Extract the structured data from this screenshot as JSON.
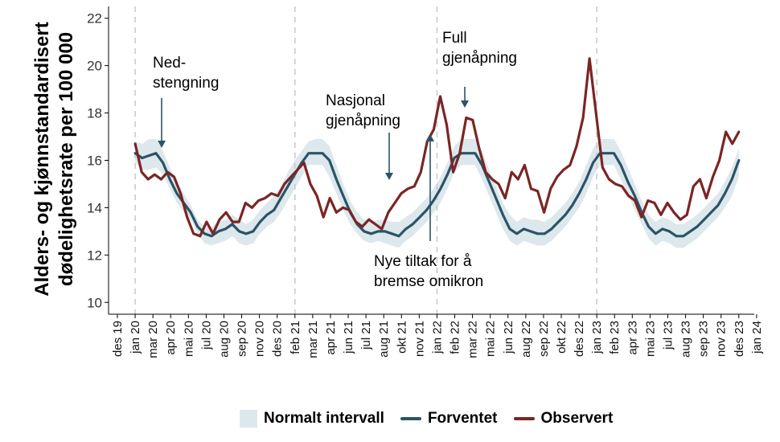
{
  "chart_data": {
    "type": "line",
    "ylabel_lines": [
      "Alders- og kjønnstandardisert",
      "dødelighetsrate per 100 000"
    ],
    "ylim": [
      9.5,
      22.5
    ],
    "yticks": [
      10,
      12,
      14,
      16,
      18,
      20,
      22
    ],
    "month_labels": [
      "des 19",
      "jan 20",
      "mar 20",
      "apr 20",
      "mai 20",
      "jul 20",
      "aug 20",
      "sep 20",
      "nov 20",
      "des 20",
      "feb 21",
      "mar 21",
      "apr 21",
      "jun 21",
      "jul 21",
      "aug 21",
      "okt 21",
      "nov 21",
      "jan 22",
      "feb 22",
      "mar 22",
      "mai 22",
      "jun 22",
      "aug 22",
      "sep 22",
      "okt 22",
      "des 22",
      "jan 23",
      "feb 23",
      "apr 23",
      "mai 23",
      "jul 23",
      "aug 23",
      "sep 23",
      "nov 23",
      "des 23",
      "jan 24"
    ],
    "vertical_lines": [
      "jan 20",
      "feb 21",
      "jan 22",
      "jan 23"
    ],
    "grid": false,
    "legend_position": "bottom",
    "annotations": [
      {
        "lines": [
          "Ned-",
          "stengning"
        ],
        "arrow": "down"
      },
      {
        "lines": [
          "Nasjonal",
          "gjenåpning"
        ],
        "arrow": "down"
      },
      {
        "lines": [
          "Full",
          "gjenåpning"
        ],
        "arrow": "down"
      },
      {
        "lines": [
          "Nye tiltak for å",
          "bremse omikron"
        ],
        "arrow": "up"
      }
    ],
    "series": [
      {
        "name": "Normalt intervall",
        "kind": "band",
        "color": "#dde8ec",
        "lower": [
          15.9,
          15.6,
          15.6,
          15.7,
          15.4,
          14.8,
          14.2,
          13.8,
          13.5,
          12.9,
          12.5,
          12.4,
          12.5,
          12.6,
          12.8,
          12.5,
          12.4,
          12.5,
          12.9,
          13.2,
          13.4,
          13.8,
          14.3,
          14.8,
          15.3,
          15.8,
          15.8,
          15.8,
          15.3,
          14.6,
          13.9,
          13.3,
          12.9,
          12.6,
          12.5,
          12.6,
          12.5,
          12.4,
          12.3,
          12.6,
          12.8,
          13.1,
          13.4,
          13.8,
          14.2,
          14.8,
          15.5,
          15.8,
          15.8,
          15.8,
          15.2,
          14.5,
          13.8,
          13.1,
          12.6,
          12.4,
          12.6,
          12.5,
          12.4,
          12.4,
          12.6,
          12.9,
          13.2,
          13.6,
          14.0,
          14.6,
          15.3,
          15.8,
          15.8,
          15.8,
          15.2,
          14.6,
          13.9,
          13.3,
          12.7,
          12.4,
          12.6,
          12.5,
          12.3,
          12.3,
          12.5,
          12.7,
          13.0,
          13.3,
          13.6,
          14.0,
          14.5,
          15.3
        ],
        "upper": [
          16.8,
          16.7,
          16.9,
          16.9,
          16.4,
          15.7,
          15.1,
          14.6,
          14.1,
          13.5,
          13.2,
          13.2,
          13.4,
          13.5,
          13.7,
          13.5,
          13.3,
          13.5,
          13.9,
          14.2,
          14.5,
          14.9,
          15.5,
          16.0,
          16.4,
          16.8,
          16.9,
          16.9,
          16.6,
          15.8,
          15.0,
          14.3,
          13.8,
          13.5,
          13.4,
          13.5,
          13.5,
          13.4,
          13.4,
          13.6,
          13.8,
          14.1,
          14.4,
          14.8,
          15.3,
          15.9,
          16.6,
          16.9,
          16.9,
          16.9,
          16.4,
          15.6,
          14.9,
          14.2,
          13.7,
          13.4,
          13.6,
          13.5,
          13.5,
          13.4,
          13.6,
          13.9,
          14.2,
          14.6,
          15.1,
          15.8,
          16.5,
          16.9,
          16.9,
          16.9,
          16.4,
          15.7,
          15.0,
          14.3,
          13.7,
          13.4,
          13.6,
          13.5,
          13.3,
          13.3,
          13.5,
          13.7,
          14.0,
          14.3,
          14.6,
          15.1,
          15.7,
          16.5
        ]
      },
      {
        "name": "Forventet",
        "kind": "line",
        "color": "#2b5466",
        "values": [
          16.3,
          16.1,
          16.2,
          16.3,
          15.9,
          15.2,
          14.6,
          14.2,
          13.8,
          13.2,
          12.9,
          12.8,
          13.0,
          13.1,
          13.3,
          13.0,
          12.9,
          13.0,
          13.4,
          13.7,
          13.9,
          14.4,
          14.9,
          15.4,
          15.9,
          16.3,
          16.3,
          16.3,
          16.0,
          15.2,
          14.5,
          13.8,
          13.3,
          13.0,
          12.9,
          13.0,
          13.0,
          12.9,
          12.8,
          13.1,
          13.3,
          13.6,
          13.9,
          14.3,
          14.8,
          15.4,
          16.1,
          16.3,
          16.3,
          16.3,
          15.8,
          15.1,
          14.4,
          13.7,
          13.1,
          12.9,
          13.1,
          13.0,
          12.9,
          12.9,
          13.1,
          13.4,
          13.7,
          14.1,
          14.6,
          15.2,
          15.9,
          16.3,
          16.3,
          16.3,
          15.8,
          15.1,
          14.5,
          13.8,
          13.2,
          12.9,
          13.1,
          13.0,
          12.8,
          12.8,
          13.0,
          13.2,
          13.5,
          13.8,
          14.1,
          14.6,
          15.2,
          16.0
        ]
      },
      {
        "name": "Observert",
        "kind": "line",
        "color": "#7b2525",
        "values": [
          16.7,
          15.5,
          15.2,
          15.4,
          15.2,
          15.5,
          15.3,
          14.6,
          13.6,
          12.9,
          12.8,
          13.4,
          12.9,
          13.5,
          13.8,
          13.4,
          13.4,
          14.2,
          14.0,
          14.3,
          14.4,
          14.6,
          14.5,
          15.0,
          15.3,
          15.6,
          15.9,
          15.0,
          14.5,
          13.6,
          14.4,
          13.8,
          14.0,
          13.9,
          13.4,
          13.2,
          13.5,
          13.3,
          13.1,
          13.8,
          14.2,
          14.6,
          14.8,
          14.9,
          15.5,
          16.8,
          17.3,
          18.7,
          17.5,
          15.5,
          16.3,
          17.8,
          17.7,
          16.5,
          15.5,
          15.2,
          15.0,
          14.4,
          15.5,
          15.2,
          15.8,
          14.8,
          14.7,
          13.8,
          14.8,
          15.3,
          15.6,
          15.8,
          16.6,
          17.8,
          20.3,
          18.0,
          15.7,
          15.2,
          15.0,
          14.9,
          14.5,
          14.3,
          13.6,
          14.3,
          14.2,
          13.7,
          14.2,
          13.8,
          13.5,
          13.7,
          14.9,
          15.2,
          14.4,
          15.3,
          16.0,
          17.2,
          16.7,
          17.2
        ]
      }
    ]
  },
  "legend": {
    "band_label": "Normalt intervall",
    "expected_label": "Forventet",
    "observed_label": "Observert"
  }
}
